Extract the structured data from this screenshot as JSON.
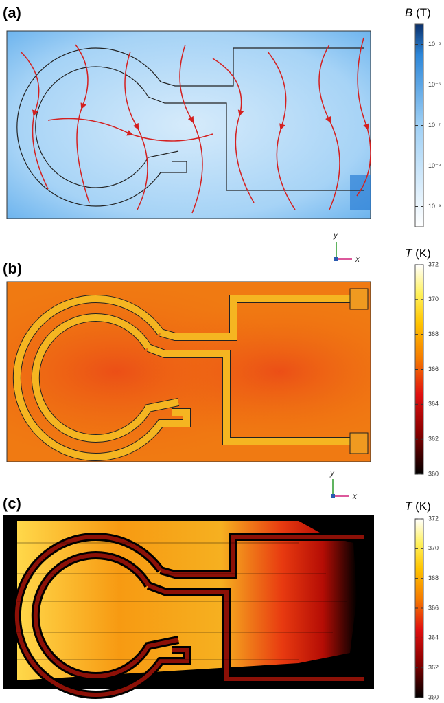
{
  "panels": [
    {
      "label": "(a)",
      "colorbar": {
        "symbol": "B",
        "unit": "(T)",
        "ticks": [
          "10⁻⁵",
          "10⁻⁶",
          "10⁻⁷",
          "10⁻⁸",
          "10⁻⁹"
        ]
      },
      "axes": {
        "y": "y",
        "x": "x"
      }
    },
    {
      "label": "(b)",
      "colorbar": {
        "symbol": "T",
        "unit": "(K)",
        "ticks": [
          372,
          370,
          368,
          366,
          364,
          362,
          360
        ]
      },
      "axes": {
        "y": "y",
        "x": "x"
      }
    },
    {
      "label": "(c)",
      "colorbar": {
        "symbol": "T",
        "unit": "(K)",
        "ticks": [
          372,
          370,
          368,
          366,
          364,
          362,
          360
        ]
      }
    }
  ]
}
